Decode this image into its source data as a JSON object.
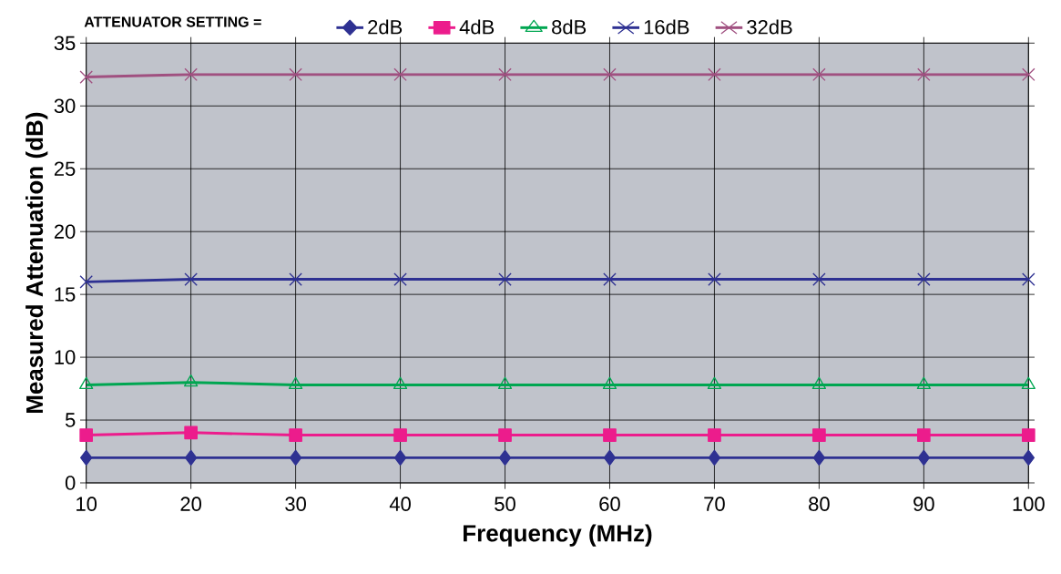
{
  "chart_data": {
    "type": "line",
    "xlabel": "Frequency (MHz)",
    "ylabel": "Measured Attenuation (dB)",
    "legend_title": "ATTENUATOR SETTING =",
    "x": [
      10,
      20,
      30,
      40,
      50,
      60,
      70,
      80,
      90,
      100
    ],
    "series": [
      {
        "name": "2dB",
        "color": "#2e3192",
        "marker": "diamond",
        "values": [
          2.0,
          2.0,
          2.0,
          2.0,
          2.0,
          2.0,
          2.0,
          2.0,
          2.0,
          2.0
        ]
      },
      {
        "name": "4dB",
        "color": "#ec1c8c",
        "marker": "square",
        "values": [
          3.8,
          4.0,
          3.8,
          3.8,
          3.8,
          3.8,
          3.8,
          3.8,
          3.8,
          3.8
        ]
      },
      {
        "name": "8dB",
        "color": "#00a651",
        "marker": "triangle",
        "values": [
          7.8,
          8.0,
          7.8,
          7.8,
          7.8,
          7.8,
          7.8,
          7.8,
          7.8,
          7.8
        ]
      },
      {
        "name": "16dB",
        "color": "#2e3192",
        "marker": "cross",
        "values": [
          16.0,
          16.2,
          16.2,
          16.2,
          16.2,
          16.2,
          16.2,
          16.2,
          16.2,
          16.2
        ]
      },
      {
        "name": "32dB",
        "color": "#a05080",
        "marker": "cross",
        "values": [
          32.3,
          32.5,
          32.5,
          32.5,
          32.5,
          32.5,
          32.5,
          32.5,
          32.5,
          32.5
        ]
      }
    ],
    "xlim": [
      10,
      100
    ],
    "xticks": [
      10,
      20,
      30,
      40,
      50,
      60,
      70,
      80,
      90,
      100
    ],
    "ylim": [
      0,
      35
    ],
    "yticks": [
      0,
      5,
      10,
      15,
      20,
      25,
      30,
      35
    ],
    "grid": true,
    "legend": "top",
    "line_style": "solid"
  }
}
